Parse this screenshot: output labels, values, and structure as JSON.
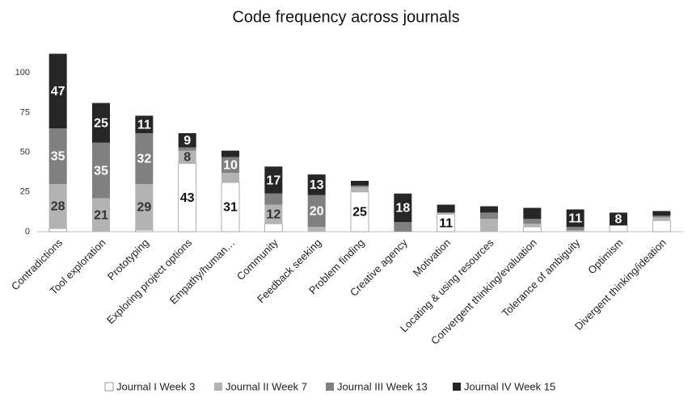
{
  "chart_data": {
    "type": "stacked-bar",
    "title": "Code frequency across journals",
    "categories": [
      "Contradictions",
      "Tool exploration",
      "Prototyping",
      "Exploring project options",
      "Empathy/human…",
      "Community",
      "Feedback seeking",
      "Problem finding",
      "Creative agency",
      "Motivation",
      "Locating & using resources",
      "Convergent thinking/evaluation",
      "Tolerance of ambiguity",
      "Optimism",
      "Divergent thinking/ideation"
    ],
    "series": [
      {
        "name": "Journal I Week 3",
        "color": "#ffffff",
        "values": [
          2,
          0,
          1,
          43,
          31,
          5,
          0,
          25,
          0,
          11,
          0,
          3,
          0,
          4,
          7
        ],
        "value_labels": [
          null,
          null,
          null,
          "43",
          "31",
          null,
          null,
          "25",
          null,
          "11",
          null,
          null,
          null,
          null,
          null
        ]
      },
      {
        "name": "Journal II Week 7",
        "color": "#b3b3b3",
        "values": [
          28,
          21,
          29,
          8,
          6,
          12,
          3,
          3,
          0,
          1,
          8,
          2,
          1,
          0,
          2
        ],
        "value_labels": [
          "28",
          "21",
          "29",
          "8",
          null,
          "12",
          null,
          null,
          null,
          null,
          null,
          null,
          null,
          null,
          null
        ]
      },
      {
        "name": "Journal III Week 13",
        "color": "#808080",
        "values": [
          35,
          35,
          32,
          2,
          10,
          7,
          20,
          1,
          6,
          0,
          4,
          3,
          2,
          0,
          1
        ],
        "value_labels": [
          "35",
          "35",
          "32",
          null,
          "10",
          null,
          "20",
          null,
          null,
          null,
          null,
          null,
          null,
          null,
          null
        ]
      },
      {
        "name": "Journal IV Week 15",
        "color": "#262626",
        "values": [
          47,
          25,
          11,
          9,
          4,
          17,
          13,
          3,
          18,
          5,
          4,
          7,
          11,
          8,
          3
        ],
        "value_labels": [
          "47",
          "25",
          "11",
          "9",
          null,
          "17",
          "13",
          null,
          "18",
          null,
          null,
          null,
          "11",
          "8",
          null
        ]
      }
    ],
    "ylim": [
      0,
      125
    ],
    "yticks": [
      0,
      25,
      50,
      75,
      100
    ],
    "legend": "bottom"
  }
}
